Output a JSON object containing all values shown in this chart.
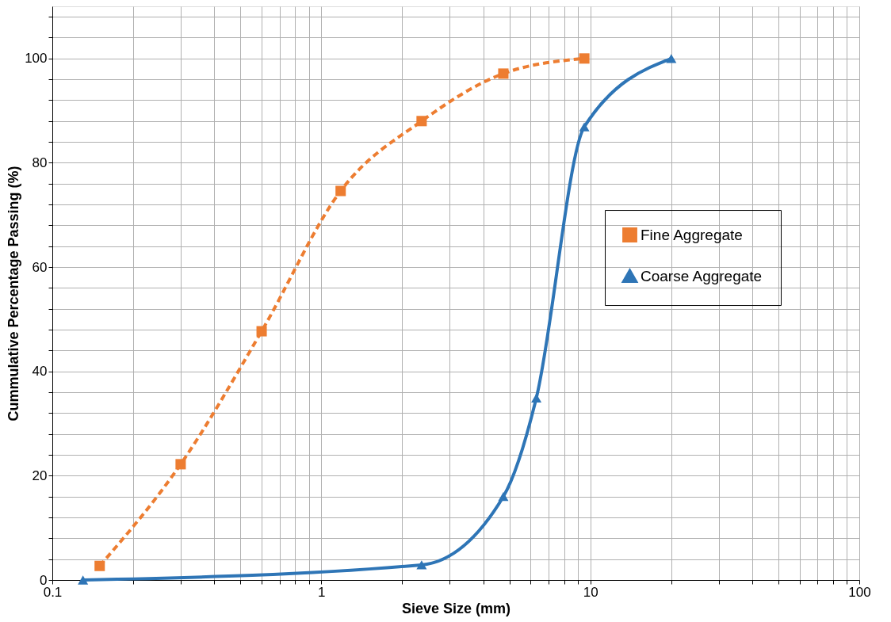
{
  "chart_data": {
    "type": "line",
    "xlabel": "Sieve Size (mm)",
    "ylabel": "Cummulative Percentage Passing  (%)",
    "log": "x",
    "grid": true,
    "legend": "right",
    "xlim": [
      0.1,
      100
    ],
    "ylim": [
      0,
      110
    ],
    "xticks": [
      0.1,
      {
        "value": 0.2,
        "label": null
      },
      {
        "value": 0.3,
        "label": null
      },
      {
        "value": 0.4,
        "label": null
      },
      {
        "value": 0.5,
        "label": null
      },
      {
        "value": 0.6,
        "label": null
      },
      {
        "value": 0.7,
        "label": null
      },
      {
        "value": 0.8,
        "label": null
      },
      {
        "value": 0.9,
        "label": null
      },
      1,
      {
        "value": 2,
        "label": null
      },
      {
        "value": 3,
        "label": null
      },
      {
        "value": 4,
        "label": null
      },
      {
        "value": 5,
        "label": null
      },
      {
        "value": 6,
        "label": null
      },
      {
        "value": 7,
        "label": null
      },
      {
        "value": 8,
        "label": null
      },
      {
        "value": 9,
        "label": null
      },
      10,
      {
        "value": 20,
        "label": null
      },
      {
        "value": 30,
        "label": null
      },
      {
        "value": 40,
        "label": null
      },
      {
        "value": 50,
        "label": null
      },
      {
        "value": 60,
        "label": null
      },
      {
        "value": 70,
        "label": null
      },
      {
        "value": 80,
        "label": null
      },
      {
        "value": 90,
        "label": null
      },
      100
    ],
    "yticks": [
      0,
      {
        "value": 4,
        "label": null
      },
      {
        "value": 8,
        "label": null
      },
      {
        "value": 12,
        "label": null
      },
      {
        "value": 16,
        "label": null
      },
      20,
      {
        "value": 24,
        "label": null
      },
      {
        "value": 28,
        "label": null
      },
      {
        "value": 32,
        "label": null
      },
      {
        "value": 36,
        "label": null
      },
      40,
      {
        "value": 44,
        "label": null
      },
      {
        "value": 48,
        "label": null
      },
      {
        "value": 52,
        "label": null
      },
      {
        "value": 56,
        "label": null
      },
      60,
      {
        "value": 64,
        "label": null
      },
      {
        "value": 68,
        "label": null
      },
      {
        "value": 72,
        "label": null
      },
      {
        "value": 76,
        "label": null
      },
      80,
      {
        "value": 84,
        "label": null
      },
      {
        "value": 88,
        "label": null
      },
      {
        "value": 92,
        "label": null
      },
      {
        "value": 96,
        "label": null
      },
      100,
      {
        "value": 104,
        "label": null
      },
      {
        "value": 108,
        "label": null
      }
    ],
    "series": [
      {
        "name": "Fine Aggregate",
        "color": "#ed7d31",
        "marker": "square",
        "line_style": "dashed",
        "x": [
          0.15,
          0.3,
          0.6,
          1.18,
          2.36,
          4.75,
          9.5
        ],
        "values": [
          2.7,
          22.2,
          47.7,
          74.6,
          88,
          97.1,
          100
        ]
      },
      {
        "name": "Coarse Aggregate",
        "color": "#2e75b6",
        "marker": "triangle",
        "line_style": "solid",
        "x": [
          0.13,
          2.36,
          4.75,
          6.3,
          9.5,
          20
        ],
        "values": [
          0,
          2.9,
          16,
          34.9,
          86.9,
          100
        ]
      }
    ]
  }
}
